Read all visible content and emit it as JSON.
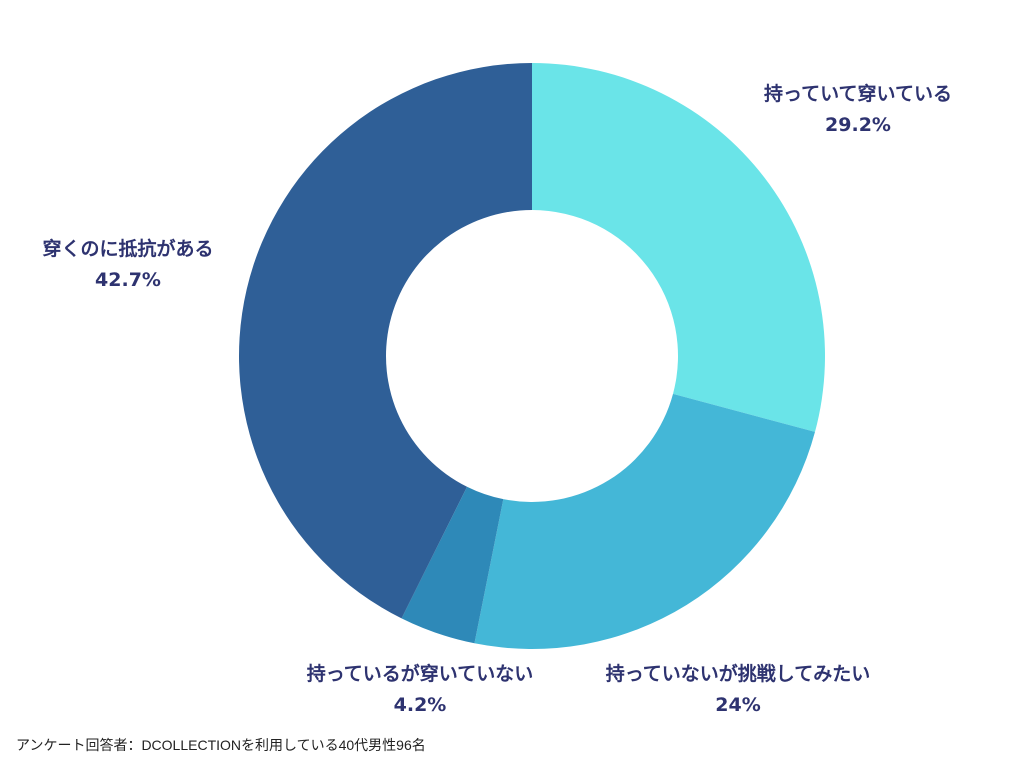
{
  "chart_data": {
    "type": "pie",
    "subtype": "donut",
    "start": "top",
    "direction": "clockwise",
    "slices": [
      {
        "label": "持っていて穿いている",
        "value": 29.2,
        "value_label": "29.2%",
        "color": "#6AE4E8"
      },
      {
        "label": "持っていないが挑戦してみたい",
        "value": 24,
        "value_label": "24%",
        "color": "#44B7D7"
      },
      {
        "label": "持っているが穿いていない",
        "value": 4.2,
        "value_label": "4.2%",
        "color": "#2E89B8"
      },
      {
        "label": "穿くのに抵抗がある",
        "value": 42.7,
        "value_label": "42.7%",
        "color": "#2F5F97"
      }
    ],
    "legend": "none"
  },
  "footnote": "アンケート回答者：DCOLLECTIONを利用している40代男性96名"
}
